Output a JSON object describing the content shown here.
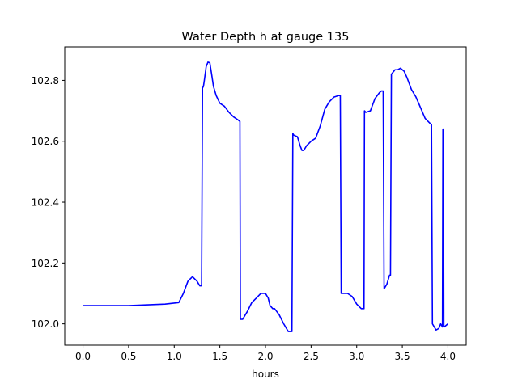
{
  "chart_data": {
    "type": "line",
    "title": "Water Depth h at gauge 135",
    "xlabel": "hours",
    "ylabel": "",
    "xlim": [
      -0.2,
      4.2
    ],
    "ylim": [
      101.93,
      102.91
    ],
    "xticks": [
      0.0,
      0.5,
      1.0,
      1.5,
      2.0,
      2.5,
      3.0,
      3.5,
      4.0
    ],
    "xtick_labels": [
      "0.0",
      "0.5",
      "1.0",
      "1.5",
      "2.0",
      "2.5",
      "3.0",
      "3.5",
      "4.0"
    ],
    "yticks": [
      102.0,
      102.2,
      102.4,
      102.6,
      102.8
    ],
    "ytick_labels": [
      "102.0",
      "102.2",
      "102.4",
      "102.6",
      "102.8"
    ],
    "grid": false,
    "color": "#0000ff",
    "series": [
      {
        "name": "",
        "x": [
          0.0,
          0.5,
          0.9,
          1.05,
          1.1,
          1.15,
          1.2,
          1.25,
          1.28,
          1.3,
          1.31,
          1.32,
          1.33,
          1.35,
          1.37,
          1.39,
          1.41,
          1.43,
          1.46,
          1.5,
          1.55,
          1.6,
          1.65,
          1.7,
          1.72,
          1.725,
          1.75,
          1.8,
          1.85,
          1.9,
          1.95,
          2.0,
          2.03,
          2.05,
          2.08,
          2.1,
          2.15,
          2.2,
          2.25,
          2.29,
          2.3,
          2.31,
          2.35,
          2.38,
          2.4,
          2.42,
          2.45,
          2.5,
          2.55,
          2.6,
          2.65,
          2.7,
          2.75,
          2.8,
          2.82,
          2.83,
          2.87,
          2.9,
          2.95,
          3.0,
          3.05,
          3.08,
          3.085,
          3.1,
          3.15,
          3.2,
          3.25,
          3.27,
          3.29,
          3.3,
          3.33,
          3.36,
          3.37,
          3.38,
          3.42,
          3.45,
          3.48,
          3.52,
          3.55,
          3.6,
          3.65,
          3.7,
          3.75,
          3.8,
          3.82,
          3.83,
          3.87,
          3.9,
          3.92,
          3.94,
          3.945,
          3.95,
          3.955,
          3.96,
          3.98,
          4.0
        ],
        "y": [
          102.06,
          102.06,
          102.065,
          102.07,
          102.1,
          102.14,
          102.155,
          102.14,
          102.125,
          102.125,
          102.775,
          102.78,
          102.8,
          102.845,
          102.86,
          102.858,
          102.82,
          102.78,
          102.75,
          102.725,
          102.715,
          102.695,
          102.68,
          102.67,
          102.665,
          102.015,
          102.015,
          102.04,
          102.07,
          102.085,
          102.1,
          102.1,
          102.085,
          102.06,
          102.05,
          102.05,
          102.03,
          102.0,
          101.975,
          101.975,
          102.625,
          102.62,
          102.615,
          102.585,
          102.57,
          102.57,
          102.585,
          102.6,
          102.61,
          102.65,
          102.705,
          102.73,
          102.745,
          102.75,
          102.75,
          102.1,
          102.1,
          102.1,
          102.09,
          102.065,
          102.05,
          102.05,
          102.7,
          102.695,
          102.7,
          102.74,
          102.76,
          102.765,
          102.765,
          102.115,
          102.13,
          102.16,
          102.16,
          102.82,
          102.835,
          102.835,
          102.84,
          102.83,
          102.81,
          102.77,
          102.745,
          102.71,
          102.675,
          102.66,
          102.655,
          102.0,
          101.98,
          101.985,
          102.0,
          101.99,
          102.64,
          102.64,
          101.99,
          101.99,
          101.995,
          102.0
        ]
      }
    ]
  }
}
